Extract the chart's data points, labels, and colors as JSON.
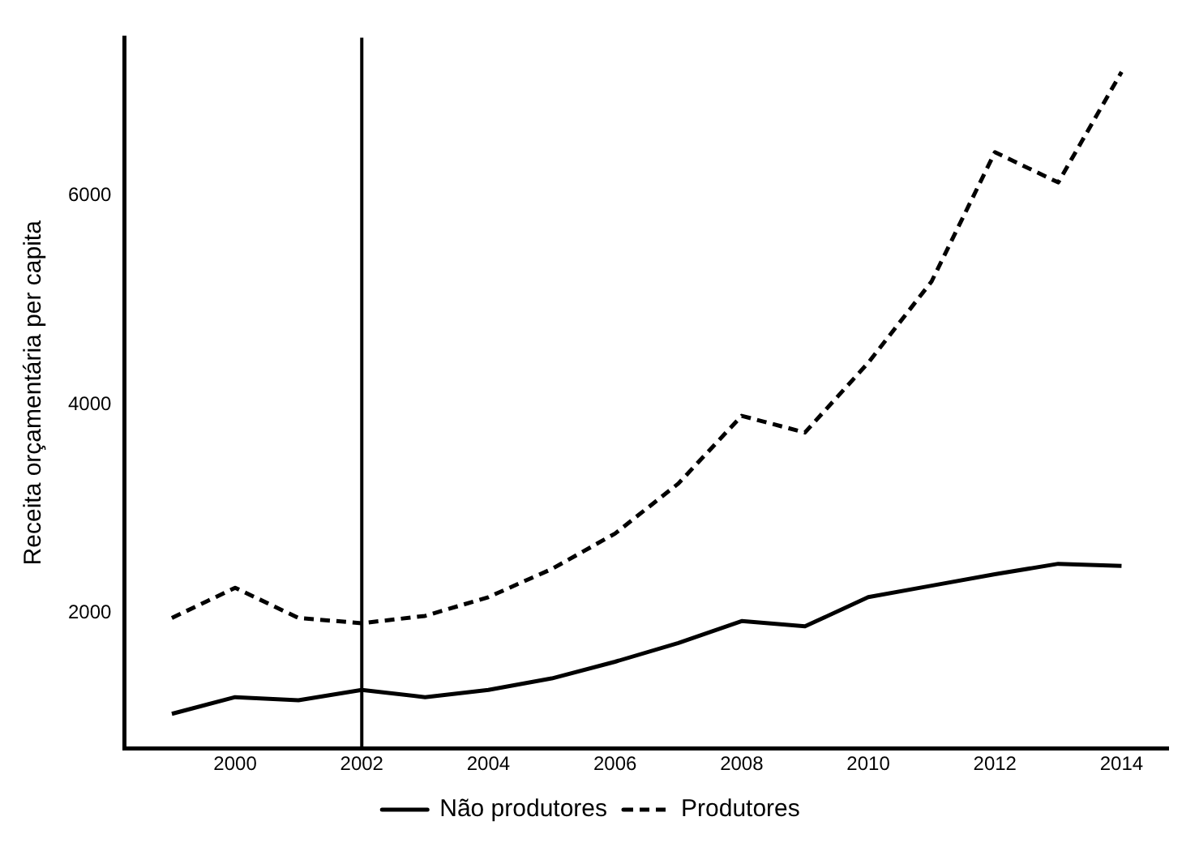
{
  "chart_data": {
    "type": "line",
    "ylabel": "Receita orçamentária per capita",
    "x": [
      1999,
      2000,
      2001,
      2002,
      2003,
      2004,
      2005,
      2006,
      2007,
      2008,
      2009,
      2010,
      2011,
      2012,
      2013,
      2014
    ],
    "series": [
      {
        "name": "Não produtores",
        "color": "#000000",
        "line_style": "solid",
        "values": [
          1030,
          1190,
          1160,
          1260,
          1190,
          1260,
          1370,
          1530,
          1710,
          1920,
          1870,
          2150,
          2260,
          2370,
          2470,
          2450
        ]
      },
      {
        "name": "Produtores",
        "color": "#000000",
        "line_style": "dashed",
        "values": [
          1950,
          2240,
          1950,
          1900,
          1970,
          2150,
          2420,
          2760,
          3240,
          3890,
          3730,
          4400,
          5180,
          6420,
          6130,
          7190
        ]
      }
    ],
    "xlim": [
      1998.25,
      2014.75
    ],
    "xticks": [
      2000,
      2002,
      2004,
      2006,
      2008,
      2010,
      2012,
      2014
    ],
    "ylim": [
      700,
      7520
    ],
    "yticks": [
      2000,
      4000,
      6000
    ],
    "ref_lines": [
      {
        "axis": "x",
        "value": 2002,
        "color": "#000000"
      }
    ],
    "grid": false,
    "legend": "bottom",
    "marker": "none"
  }
}
